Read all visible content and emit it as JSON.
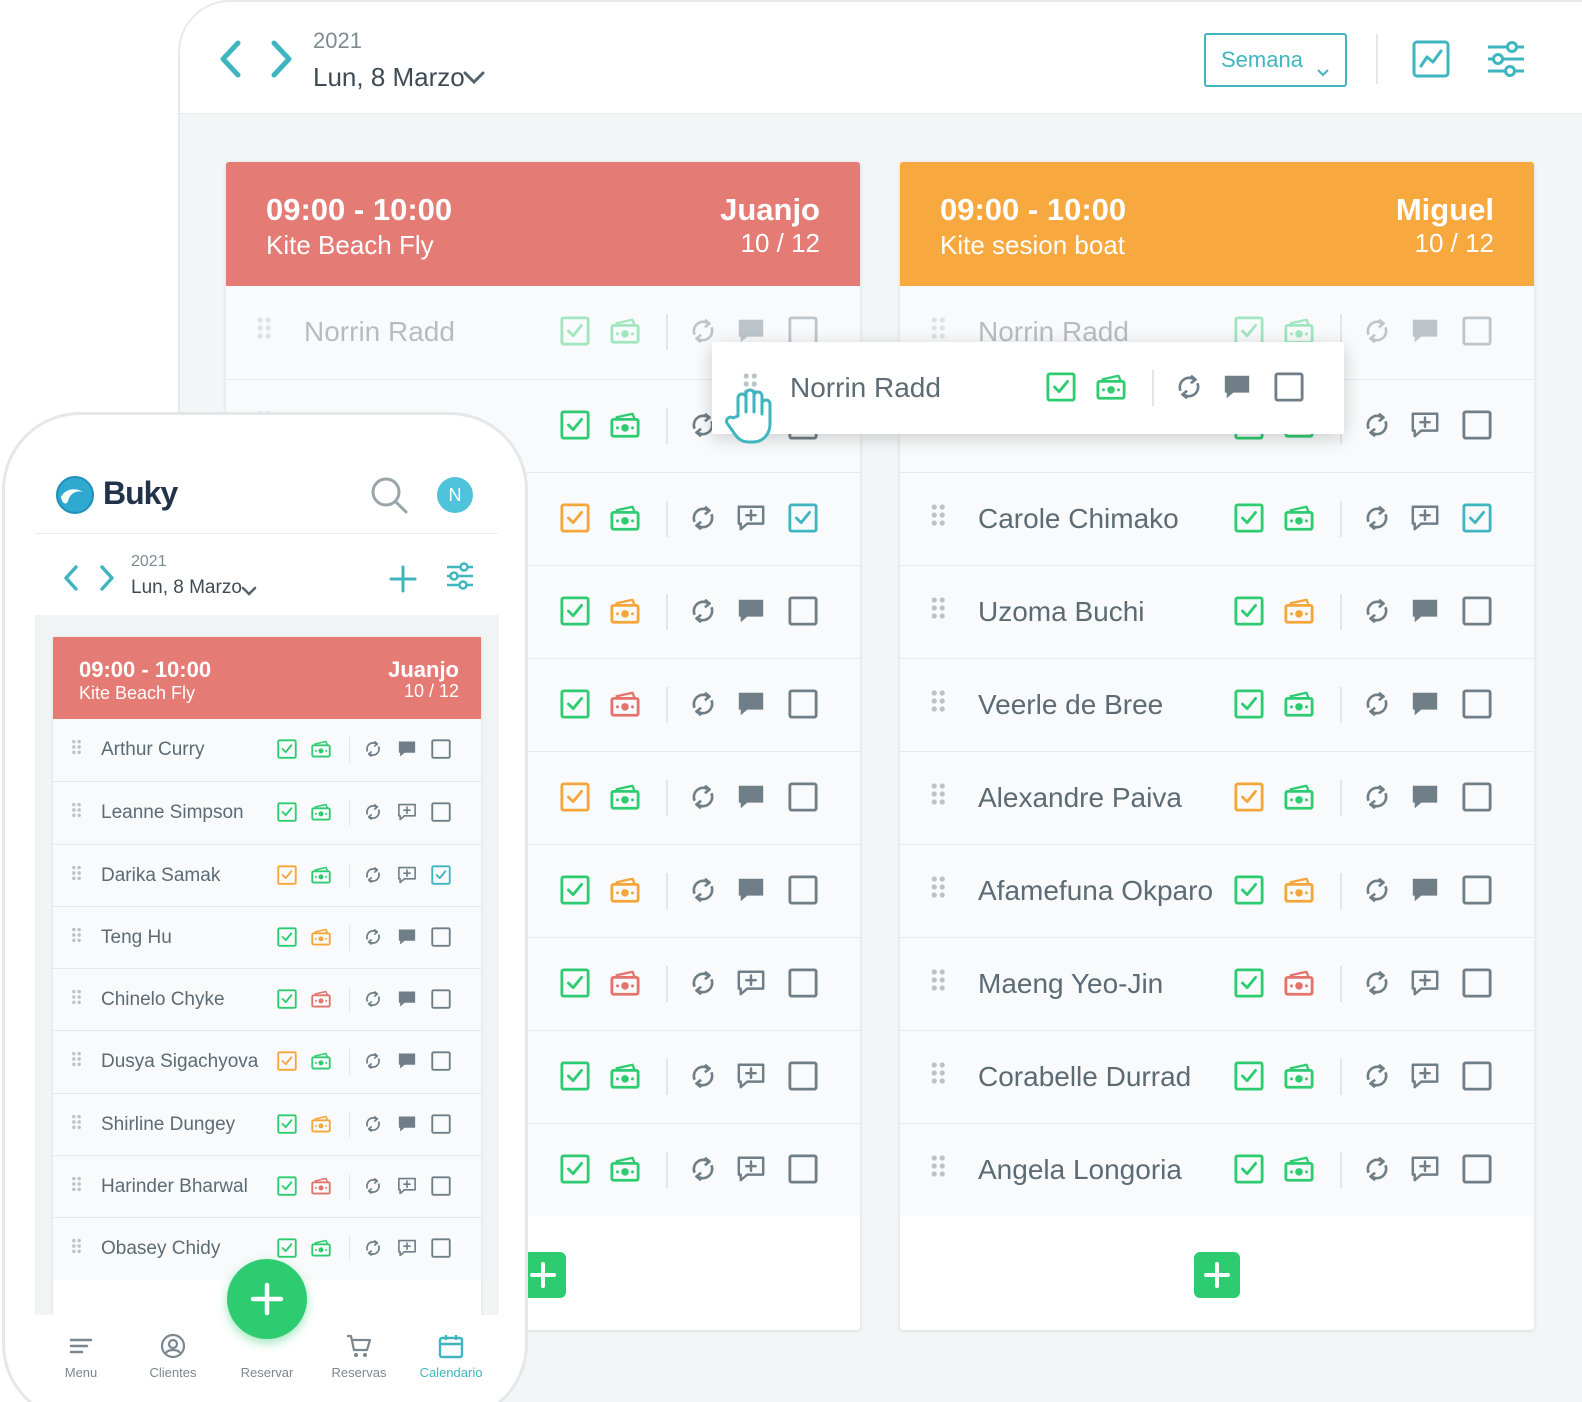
{
  "colors": {
    "teal": "#3fb6bf",
    "green": "#2ecc71",
    "orange": "#f5a63b",
    "red": "#e4736c",
    "gray_icon": "#6f7e87"
  },
  "desktop": {
    "header": {
      "year": "2021",
      "date": "Lun, 8 Marzo",
      "view_select": "Semana"
    },
    "sessions": [
      {
        "time": "09:00 - 10:00",
        "name": "Kite Beach Fly",
        "instructor": "Juanjo",
        "count": "10 / 12",
        "color": "#e57b75",
        "rows": [
          {
            "name": "Norrin Radd",
            "check": "green",
            "pay": "green",
            "msg": "filled",
            "box": "empty",
            "faded": true
          },
          {
            "name": "",
            "check": "green",
            "pay": "green",
            "msg": "filled",
            "box": "empty"
          },
          {
            "name": "",
            "check": "orange",
            "pay": "green",
            "msg": "add",
            "box": "checked"
          },
          {
            "name": "",
            "check": "green",
            "pay": "orange",
            "msg": "filled",
            "box": "empty"
          },
          {
            "name": "",
            "check": "green",
            "pay": "red",
            "msg": "filled",
            "box": "empty"
          },
          {
            "name": "",
            "check": "orange",
            "pay": "green",
            "msg": "filled",
            "box": "empty"
          },
          {
            "name": "",
            "check": "green",
            "pay": "orange",
            "msg": "filled",
            "box": "empty"
          },
          {
            "name": "",
            "check": "green",
            "pay": "red",
            "msg": "add",
            "box": "empty"
          },
          {
            "name": "",
            "check": "green",
            "pay": "green",
            "msg": "add",
            "box": "empty"
          },
          {
            "name": "",
            "check": "green",
            "pay": "green",
            "msg": "add",
            "box": "empty"
          }
        ]
      },
      {
        "time": "09:00 - 10:00",
        "name": "Kite sesion boat",
        "instructor": "Miguel",
        "count": "10 / 12",
        "color": "#f7a83e",
        "rows": [
          {
            "name": "Norrin Radd",
            "check": "green",
            "pay": "green",
            "msg": "filled",
            "box": "empty",
            "faded": true
          },
          {
            "name": "",
            "check": "green",
            "pay": "green",
            "msg": "add",
            "box": "empty"
          },
          {
            "name": "Carole Chimako",
            "check": "green",
            "pay": "green",
            "msg": "add",
            "box": "checked"
          },
          {
            "name": "Uzoma Buchi",
            "check": "green",
            "pay": "orange",
            "msg": "filled",
            "box": "empty"
          },
          {
            "name": "Veerle de Bree",
            "check": "green",
            "pay": "green",
            "msg": "filled",
            "box": "empty"
          },
          {
            "name": "Alexandre Paiva",
            "check": "orange",
            "pay": "green",
            "msg": "filled",
            "box": "empty"
          },
          {
            "name": "Afamefuna Okparo",
            "check": "green",
            "pay": "orange",
            "msg": "filled",
            "box": "empty"
          },
          {
            "name": "Maeng Yeo-Jin",
            "check": "green",
            "pay": "red",
            "msg": "add",
            "box": "empty"
          },
          {
            "name": "Corabelle Durrad",
            "check": "green",
            "pay": "green",
            "msg": "add",
            "box": "empty"
          },
          {
            "name": "Angela Longoria",
            "check": "green",
            "pay": "green",
            "msg": "add",
            "box": "empty"
          }
        ]
      }
    ],
    "drag_card": {
      "name": "Norrin Radd",
      "check": "green",
      "pay": "green",
      "msg": "filled",
      "box": "empty"
    }
  },
  "phone": {
    "app_name": "Buky",
    "avatar_initial": "N",
    "year": "2021",
    "date": "Lun, 8 Marzo",
    "session": {
      "time": "09:00 - 10:00",
      "name": "Kite Beach Fly",
      "instructor": "Juanjo",
      "count": "10 / 12",
      "color": "#e57b75",
      "rows": [
        {
          "name": "Arthur Curry",
          "check": "green",
          "pay": "green",
          "msg": "filled",
          "box": "empty"
        },
        {
          "name": "Leanne Simpson",
          "check": "green",
          "pay": "green",
          "msg": "add",
          "box": "empty"
        },
        {
          "name": "Darika Samak",
          "check": "orange",
          "pay": "green",
          "msg": "add",
          "box": "checked"
        },
        {
          "name": "Teng Hu",
          "check": "green",
          "pay": "orange",
          "msg": "filled",
          "box": "empty"
        },
        {
          "name": "Chinelo Chyke",
          "check": "green",
          "pay": "red",
          "msg": "filled",
          "box": "empty"
        },
        {
          "name": "Dusya Sigachyova",
          "check": "orange",
          "pay": "green",
          "msg": "filled",
          "box": "empty"
        },
        {
          "name": "Shirline Dungey",
          "check": "green",
          "pay": "orange",
          "msg": "filled",
          "box": "empty"
        },
        {
          "name": "Harinder Bharwal",
          "check": "green",
          "pay": "red",
          "msg": "add",
          "box": "empty"
        },
        {
          "name": "Obasey Chidy",
          "check": "green",
          "pay": "green",
          "msg": "add",
          "box": "empty"
        }
      ]
    },
    "nav": [
      {
        "label": "Menu",
        "icon": "menu-icon"
      },
      {
        "label": "Clientes",
        "icon": "user-circle-icon"
      },
      {
        "label": "Reservar",
        "icon": "plus-icon"
      },
      {
        "label": "Reservas",
        "icon": "cart-icon"
      },
      {
        "label": "Calendario",
        "icon": "calendar-icon",
        "active": true
      }
    ]
  }
}
